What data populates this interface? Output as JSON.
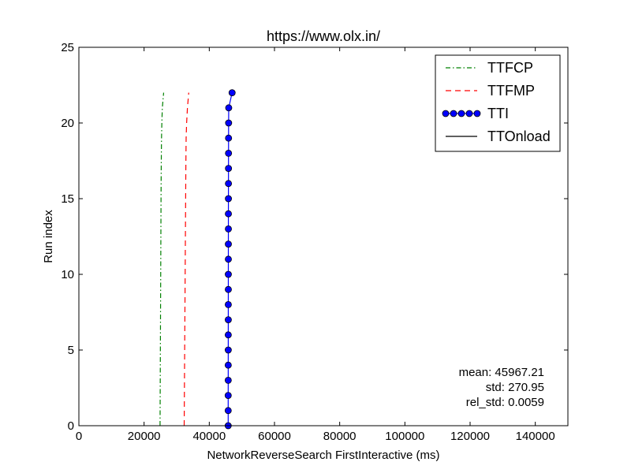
{
  "chart_data": {
    "type": "line",
    "title": "https://www.olx.in/",
    "xlabel": "NetworkReverseSearch FirstInteractive (ms)",
    "ylabel": "Run index",
    "xlim": [
      0,
      150000
    ],
    "ylim": [
      0,
      25
    ],
    "x_ticks": [
      "0",
      "20000",
      "40000",
      "60000",
      "80000",
      "100000",
      "120000",
      "140000"
    ],
    "y_ticks": [
      "0",
      "5",
      "10",
      "15",
      "20",
      "25"
    ],
    "grid": false,
    "legend_position": "top-right",
    "y": [
      0,
      1,
      2,
      3,
      4,
      5,
      6,
      7,
      8,
      9,
      10,
      11,
      12,
      13,
      14,
      15,
      16,
      17,
      18,
      19,
      20,
      21,
      22
    ],
    "series": [
      {
        "name": "TTFCP",
        "color": "#008000",
        "style": "dash-dot",
        "x": [
          24900,
          24920,
          24940,
          24960,
          24980,
          25000,
          25020,
          25040,
          25060,
          25080,
          25100,
          25120,
          25140,
          25160,
          25180,
          25200,
          25230,
          25260,
          25300,
          25350,
          25450,
          25600,
          26000
        ]
      },
      {
        "name": "TTFMP",
        "color": "#ff0000",
        "style": "dashed",
        "x": [
          32300,
          32330,
          32360,
          32390,
          32420,
          32450,
          32480,
          32510,
          32540,
          32570,
          32600,
          32630,
          32660,
          32690,
          32720,
          32750,
          32780,
          32810,
          32850,
          32900,
          33050,
          33300,
          33700
        ]
      },
      {
        "name": "TTI",
        "color": "#0000ff",
        "style": "solid-markers",
        "x": [
          45800,
          45800,
          45800,
          45810,
          45810,
          45820,
          45820,
          45830,
          45830,
          45840,
          45840,
          45850,
          45850,
          45860,
          45860,
          45870,
          45880,
          45890,
          45900,
          45910,
          45930,
          45960,
          47000
        ]
      },
      {
        "name": "TTOnload",
        "color": "#000000",
        "style": "solid",
        "x": []
      }
    ],
    "stats": {
      "mean": "mean: 45967.21",
      "std": "std: 270.95",
      "rel_std": "rel_std: 0.0059"
    }
  }
}
